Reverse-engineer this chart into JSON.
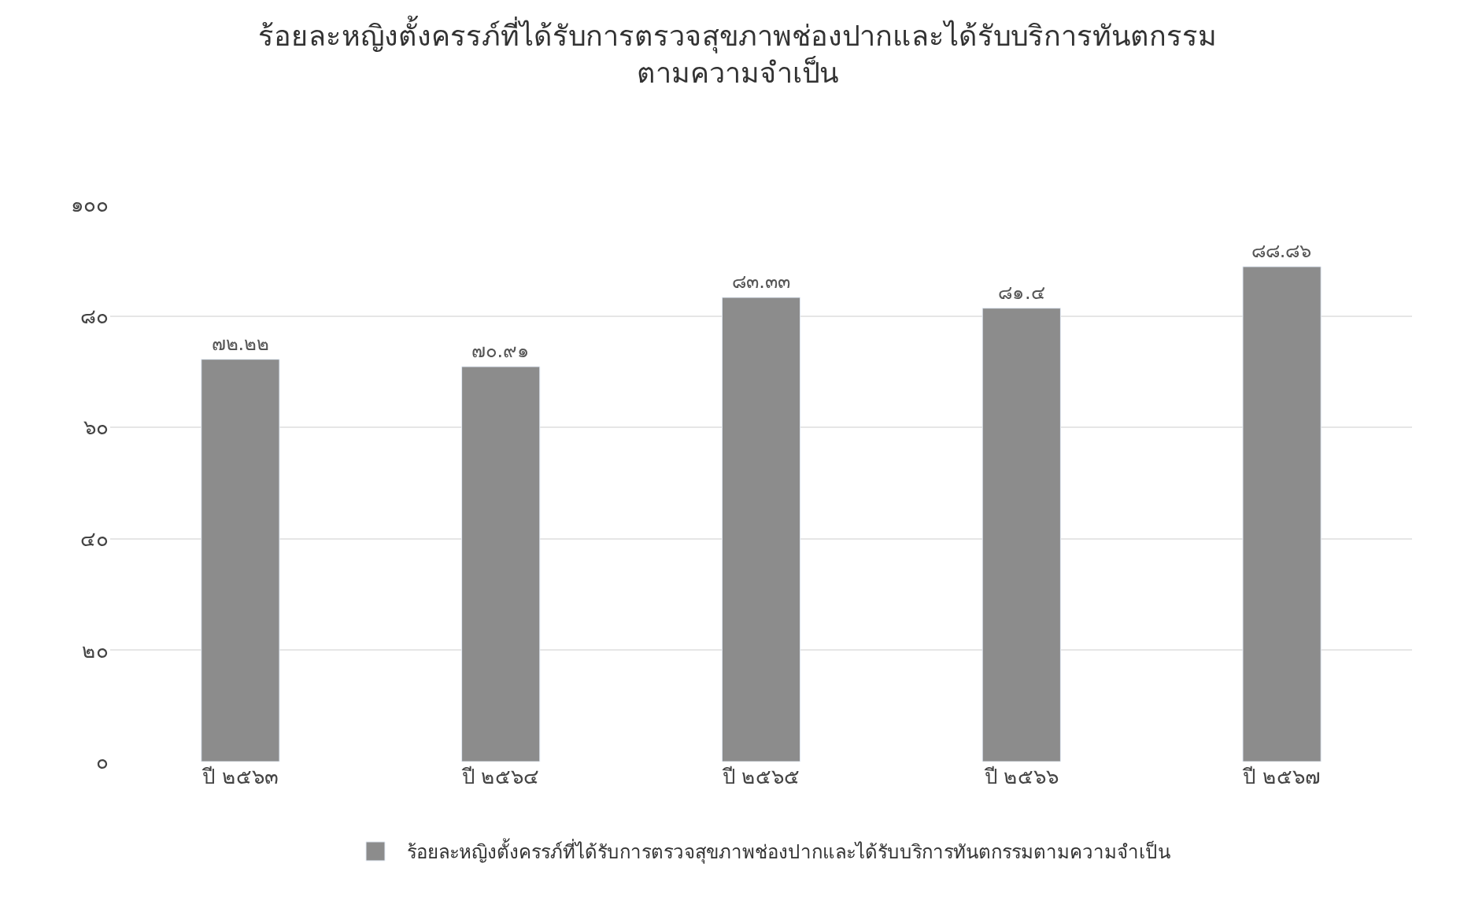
{
  "chart_data": {
    "type": "bar",
    "title": "ร้อยละหญิงตั้งครรภ์ที่ได้รับการตรวจสุขภาพช่องปากและได้รับบริการทันตกรรม\nตามความจำเป็น",
    "categories": [
      "ปี ๒๕๖๓",
      "ปี ๒๕๖๔",
      "ปี ๒๕๖๕",
      "ปี ๒๕๖๖",
      "ปี ๒๕๖๗"
    ],
    "series": [
      {
        "name": "ร้อยละหญิงตั้งครรภ์ที่ได้รับการตรวจสุขภาพช่องปากและได้รับบริการทันตกรรมตามความจำเป็น",
        "color": "#8c8c8c",
        "values": [
          72.22,
          70.91,
          83.33,
          81.4,
          88.86
        ],
        "value_labels": [
          "๗๒.๒๒",
          "๗๐.๙๑",
          "๘๓.๓๓",
          "๘๑.๔",
          "๘๘.๘๖"
        ]
      }
    ],
    "ylim": [
      0,
      100
    ],
    "yticks": [
      {
        "value": 0,
        "label": "๐"
      },
      {
        "value": 20,
        "label": "๒๐"
      },
      {
        "value": 40,
        "label": "๔๐"
      },
      {
        "value": 60,
        "label": "๖๐"
      },
      {
        "value": 80,
        "label": "๘๐"
      },
      {
        "value": 100,
        "label": "๑๐๐"
      }
    ],
    "grid": "y",
    "legend": "bottom"
  }
}
